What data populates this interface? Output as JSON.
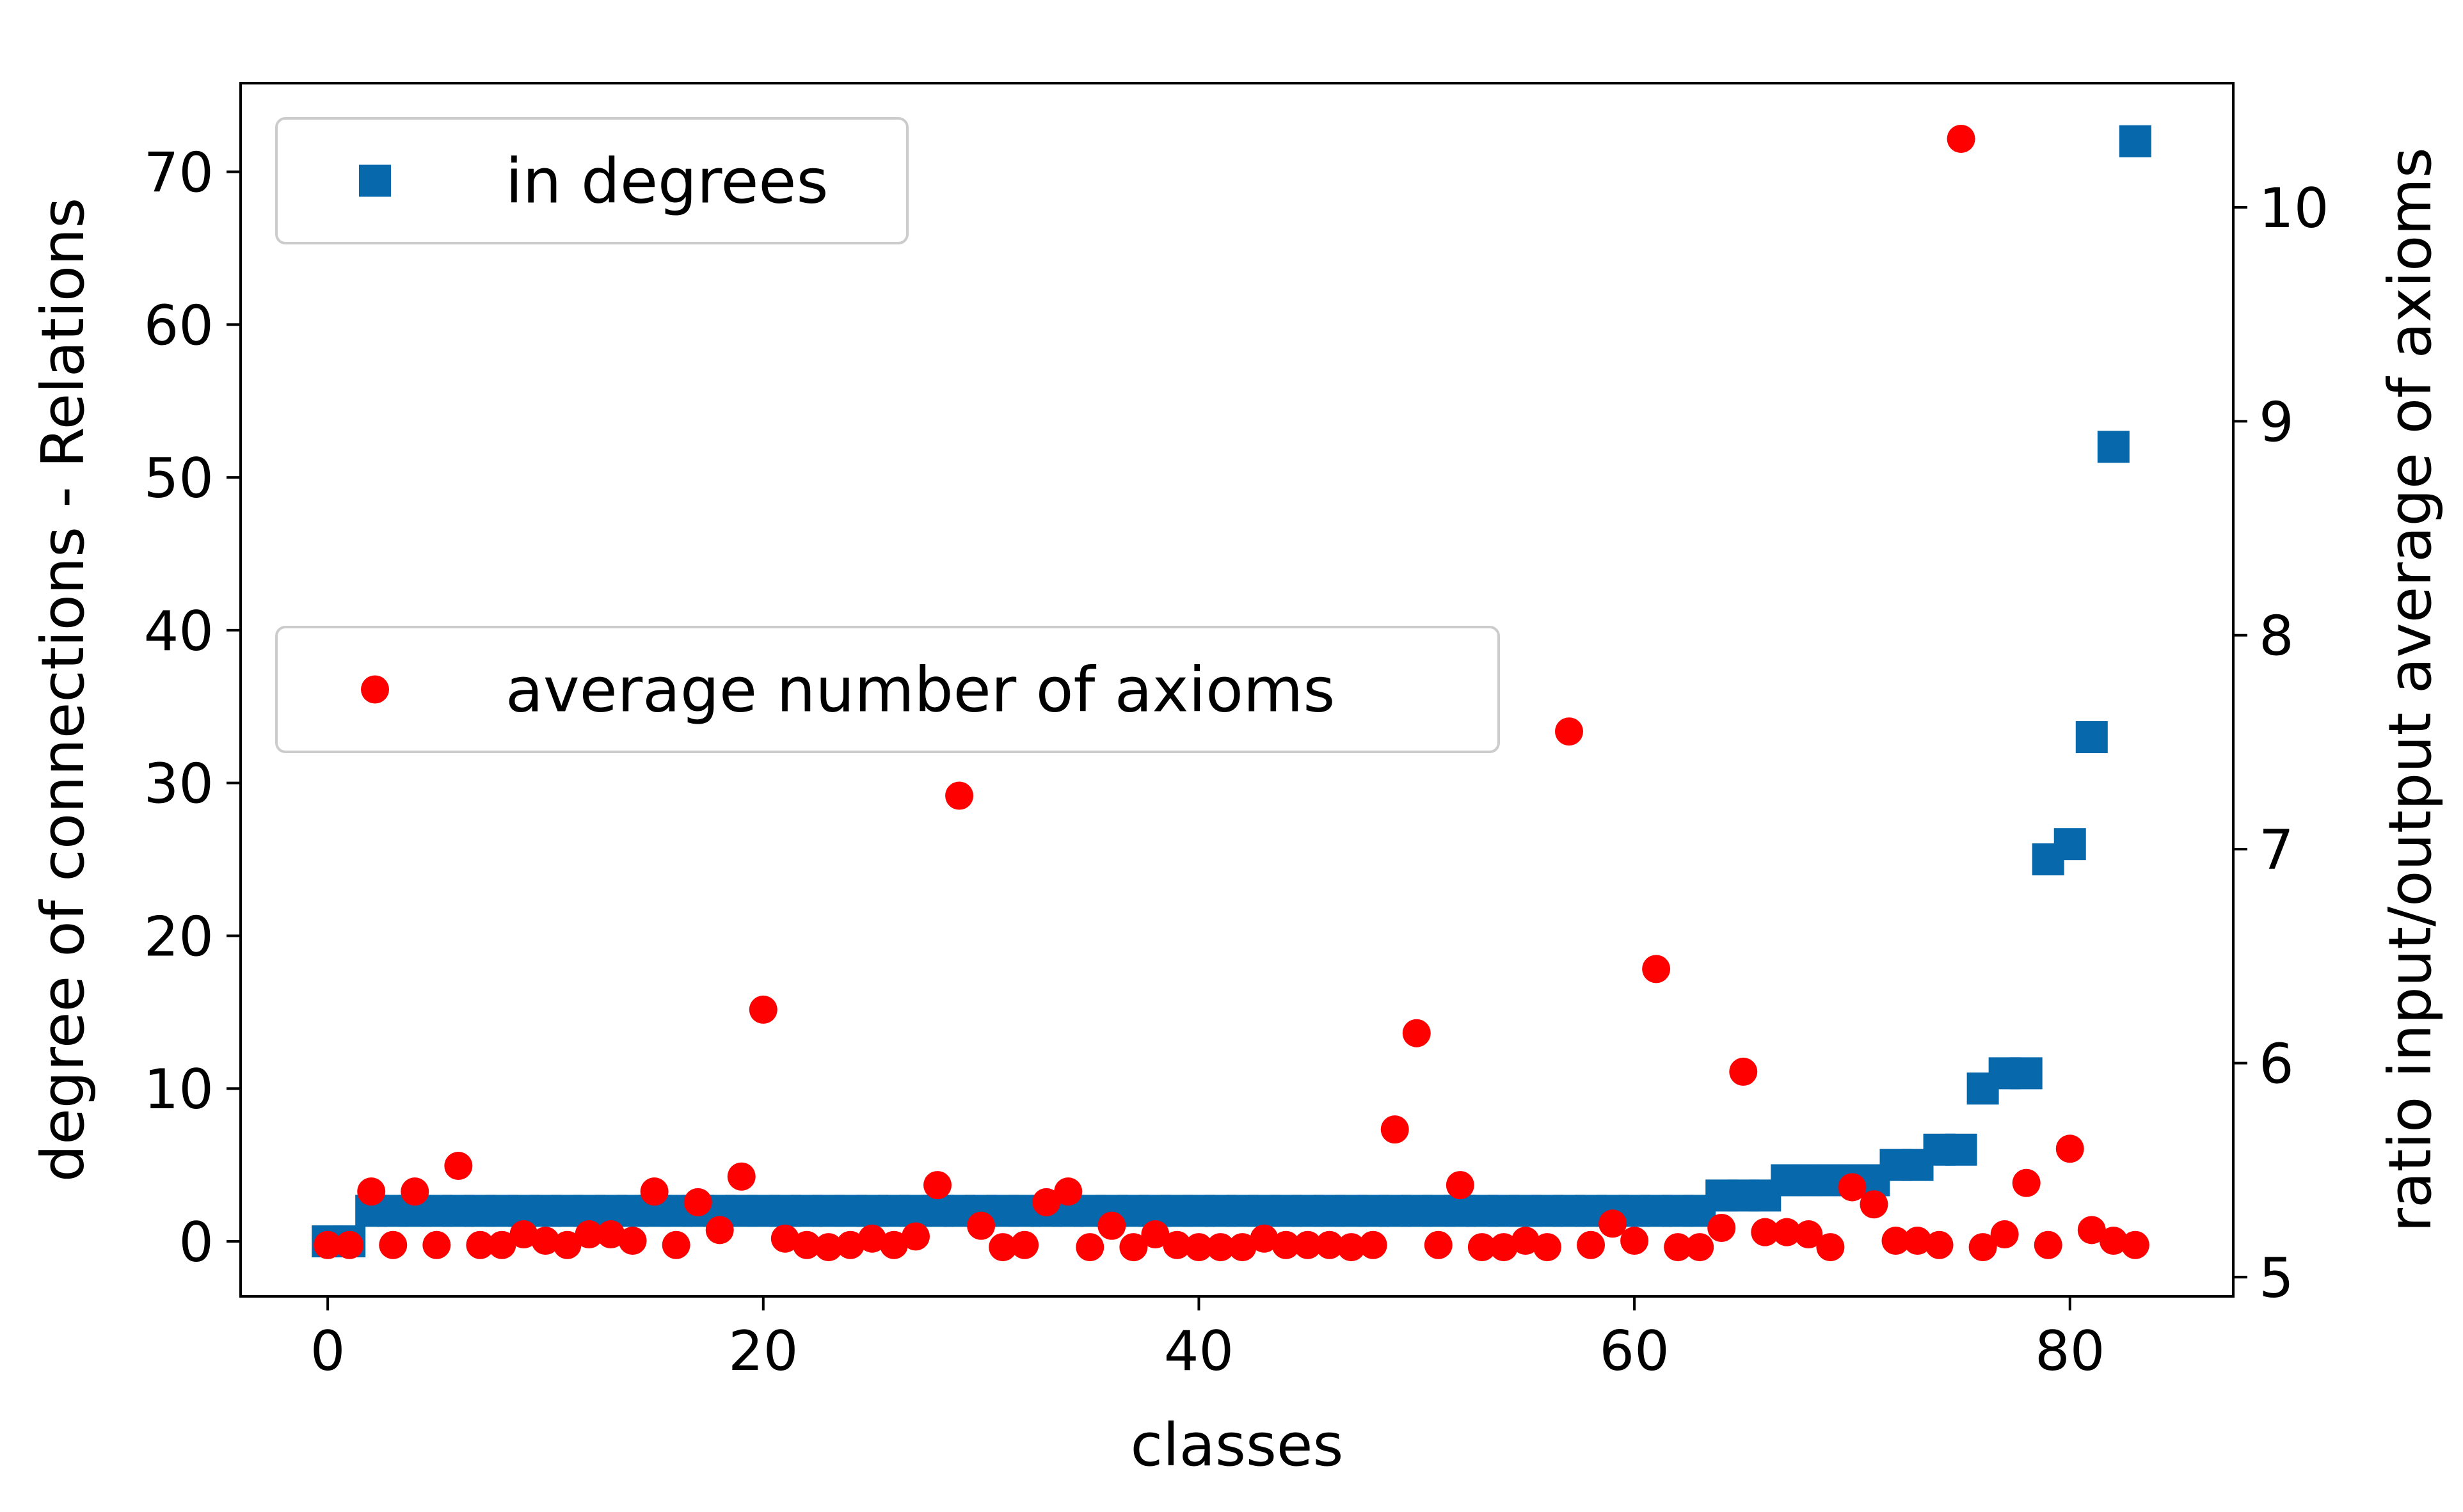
{
  "chart_data": {
    "type": "scatter",
    "xlabel": "classes",
    "ylabel_left": "degree of connections - Relations",
    "ylabel_right": "ratio input/output average of axioms",
    "xlim": [
      -4,
      87.5
    ],
    "ylim_left": [
      -3.6,
      75.8
    ],
    "ylim_right": [
      4.91,
      10.58
    ],
    "x_ticks": [
      0,
      20,
      40,
      60,
      80
    ],
    "y_ticks_left": [
      0,
      10,
      20,
      30,
      40,
      50,
      60,
      70
    ],
    "y_ticks_right": [
      5,
      6,
      7,
      8,
      9,
      10
    ],
    "grid": false,
    "series": [
      {
        "name": "in degrees",
        "axis": "left",
        "marker": "square",
        "color": "#0868ac",
        "legend_position": "upper-left",
        "points": [
          [
            0,
            0
          ],
          [
            1,
            0
          ],
          [
            2,
            2
          ],
          [
            3,
            2
          ],
          [
            4,
            2
          ],
          [
            5,
            2
          ],
          [
            6,
            2
          ],
          [
            7,
            2
          ],
          [
            8,
            2
          ],
          [
            9,
            2
          ],
          [
            10,
            2
          ],
          [
            11,
            2
          ],
          [
            12,
            2
          ],
          [
            13,
            2
          ],
          [
            14,
            2
          ],
          [
            15,
            2
          ],
          [
            16,
            2
          ],
          [
            17,
            2
          ],
          [
            18,
            2
          ],
          [
            19,
            2
          ],
          [
            20,
            2
          ],
          [
            21,
            2
          ],
          [
            22,
            2
          ],
          [
            23,
            2
          ],
          [
            24,
            2
          ],
          [
            25,
            2
          ],
          [
            26,
            2
          ],
          [
            27,
            2
          ],
          [
            28,
            2
          ],
          [
            29,
            2
          ],
          [
            30,
            2
          ],
          [
            31,
            2
          ],
          [
            32,
            2
          ],
          [
            33,
            2
          ],
          [
            34,
            2
          ],
          [
            35,
            2
          ],
          [
            36,
            2
          ],
          [
            37,
            2
          ],
          [
            38,
            2
          ],
          [
            39,
            2
          ],
          [
            40,
            2
          ],
          [
            41,
            2
          ],
          [
            42,
            2
          ],
          [
            43,
            2
          ],
          [
            44,
            2
          ],
          [
            45,
            2
          ],
          [
            46,
            2
          ],
          [
            47,
            2
          ],
          [
            48,
            2
          ],
          [
            49,
            2
          ],
          [
            50,
            2
          ],
          [
            51,
            2
          ],
          [
            52,
            2
          ],
          [
            53,
            2
          ],
          [
            54,
            2
          ],
          [
            55,
            2
          ],
          [
            56,
            2
          ],
          [
            57,
            2
          ],
          [
            58,
            2
          ],
          [
            59,
            2
          ],
          [
            60,
            2
          ],
          [
            61,
            2
          ],
          [
            62,
            2
          ],
          [
            63,
            2
          ],
          [
            64,
            3
          ],
          [
            65,
            3
          ],
          [
            66,
            3
          ],
          [
            67,
            4
          ],
          [
            68,
            4
          ],
          [
            69,
            4
          ],
          [
            70,
            4
          ],
          [
            71,
            4
          ],
          [
            72,
            5
          ],
          [
            73,
            5
          ],
          [
            74,
            6
          ],
          [
            75,
            6
          ],
          [
            76,
            10
          ],
          [
            77,
            11
          ],
          [
            78,
            11
          ],
          [
            79,
            25
          ],
          [
            80,
            26
          ],
          [
            81,
            33
          ],
          [
            82,
            52
          ],
          [
            83,
            72
          ]
        ]
      },
      {
        "name": "average number of axioms",
        "axis": "right",
        "marker": "circle",
        "color": "#ff0000",
        "legend_position": "center-left",
        "points": [
          [
            0,
            5.15
          ],
          [
            1,
            5.15
          ],
          [
            2,
            5.4
          ],
          [
            3,
            5.15
          ],
          [
            4,
            5.4
          ],
          [
            5,
            5.15
          ],
          [
            6,
            5.52
          ],
          [
            7,
            5.15
          ],
          [
            8,
            5.15
          ],
          [
            9,
            5.2
          ],
          [
            10,
            5.17
          ],
          [
            11,
            5.15
          ],
          [
            12,
            5.2
          ],
          [
            13,
            5.2
          ],
          [
            14,
            5.17
          ],
          [
            15,
            5.4
          ],
          [
            16,
            5.15
          ],
          [
            17,
            5.35
          ],
          [
            18,
            5.22
          ],
          [
            19,
            5.47
          ],
          [
            20,
            6.25
          ],
          [
            21,
            5.18
          ],
          [
            22,
            5.15
          ],
          [
            23,
            5.14
          ],
          [
            24,
            5.15
          ],
          [
            25,
            5.18
          ],
          [
            26,
            5.15
          ],
          [
            27,
            5.19
          ],
          [
            28,
            5.43
          ],
          [
            29,
            7.25
          ],
          [
            30,
            5.24
          ],
          [
            31,
            5.14
          ],
          [
            32,
            5.15
          ],
          [
            33,
            5.35
          ],
          [
            34,
            5.4
          ],
          [
            35,
            5.14
          ],
          [
            36,
            5.24
          ],
          [
            37,
            5.14
          ],
          [
            38,
            5.2
          ],
          [
            39,
            5.15
          ],
          [
            40,
            5.14
          ],
          [
            41,
            5.14
          ],
          [
            42,
            5.14
          ],
          [
            43,
            5.18
          ],
          [
            44,
            5.15
          ],
          [
            45,
            5.15
          ],
          [
            46,
            5.15
          ],
          [
            47,
            5.14
          ],
          [
            48,
            5.15
          ],
          [
            49,
            5.69
          ],
          [
            50,
            6.14
          ],
          [
            51,
            5.15
          ],
          [
            52,
            5.43
          ],
          [
            53,
            5.14
          ],
          [
            54,
            5.14
          ],
          [
            55,
            5.17
          ],
          [
            56,
            5.14
          ],
          [
            57,
            7.55
          ],
          [
            58,
            5.15
          ],
          [
            59,
            5.25
          ],
          [
            60,
            5.17
          ],
          [
            61,
            6.44
          ],
          [
            62,
            5.14
          ],
          [
            63,
            5.14
          ],
          [
            64,
            5.23
          ],
          [
            65,
            5.96
          ],
          [
            66,
            5.21
          ],
          [
            67,
            5.21
          ],
          [
            68,
            5.2
          ],
          [
            69,
            5.14
          ],
          [
            70,
            5.42
          ],
          [
            71,
            5.34
          ],
          [
            72,
            5.17
          ],
          [
            73,
            5.17
          ],
          [
            74,
            5.15
          ],
          [
            75,
            10.32
          ],
          [
            76,
            5.14
          ],
          [
            77,
            5.2
          ],
          [
            78,
            5.44
          ],
          [
            79,
            5.15
          ],
          [
            80,
            5.6
          ],
          [
            81,
            5.22
          ],
          [
            82,
            5.17
          ],
          [
            83,
            5.15
          ]
        ]
      }
    ]
  }
}
